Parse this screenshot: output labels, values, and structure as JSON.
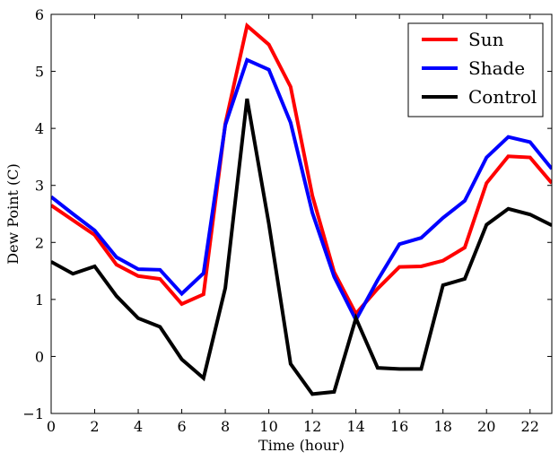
{
  "chart_data": {
    "type": "line",
    "title": "",
    "xlabel": "Time (hour)",
    "ylabel": "Dew Point (C)",
    "xlim": [
      0,
      23
    ],
    "ylim": [
      -1,
      6
    ],
    "xticks": [
      0,
      2,
      4,
      6,
      8,
      10,
      12,
      14,
      16,
      18,
      20,
      22
    ],
    "yticks": [
      -1,
      0,
      1,
      2,
      3,
      4,
      5,
      6
    ],
    "grid": false,
    "legend_position": "top-right",
    "x": [
      0,
      1,
      2,
      3,
      4,
      5,
      6,
      7,
      8,
      9,
      10,
      11,
      12,
      13,
      14,
      15,
      16,
      17,
      18,
      19,
      20,
      21,
      22,
      23
    ],
    "series": [
      {
        "name": "Sun",
        "color": "#ff0000",
        "values": [
          2.65,
          2.39,
          2.13,
          1.61,
          1.41,
          1.36,
          0.92,
          1.09,
          4.08,
          5.8,
          5.47,
          4.73,
          2.82,
          1.48,
          0.75,
          1.19,
          1.57,
          1.58,
          1.68,
          1.91,
          3.04,
          3.51,
          3.49,
          3.04
        ]
      },
      {
        "name": "Shade",
        "color": "#0000ff",
        "values": [
          2.8,
          2.5,
          2.21,
          1.74,
          1.53,
          1.52,
          1.1,
          1.46,
          4.06,
          5.2,
          5.03,
          4.1,
          2.52,
          1.4,
          0.64,
          1.34,
          1.97,
          2.08,
          2.43,
          2.73,
          3.49,
          3.85,
          3.76,
          3.29
        ]
      },
      {
        "name": "Control",
        "color": "#000000",
        "values": [
          1.66,
          1.45,
          1.58,
          1.06,
          0.67,
          0.52,
          -0.05,
          -0.38,
          1.2,
          4.52,
          2.33,
          -0.13,
          -0.66,
          -0.62,
          0.67,
          -0.2,
          -0.22,
          -0.22,
          1.25,
          1.36,
          2.31,
          2.59,
          2.49,
          2.3
        ]
      }
    ]
  }
}
